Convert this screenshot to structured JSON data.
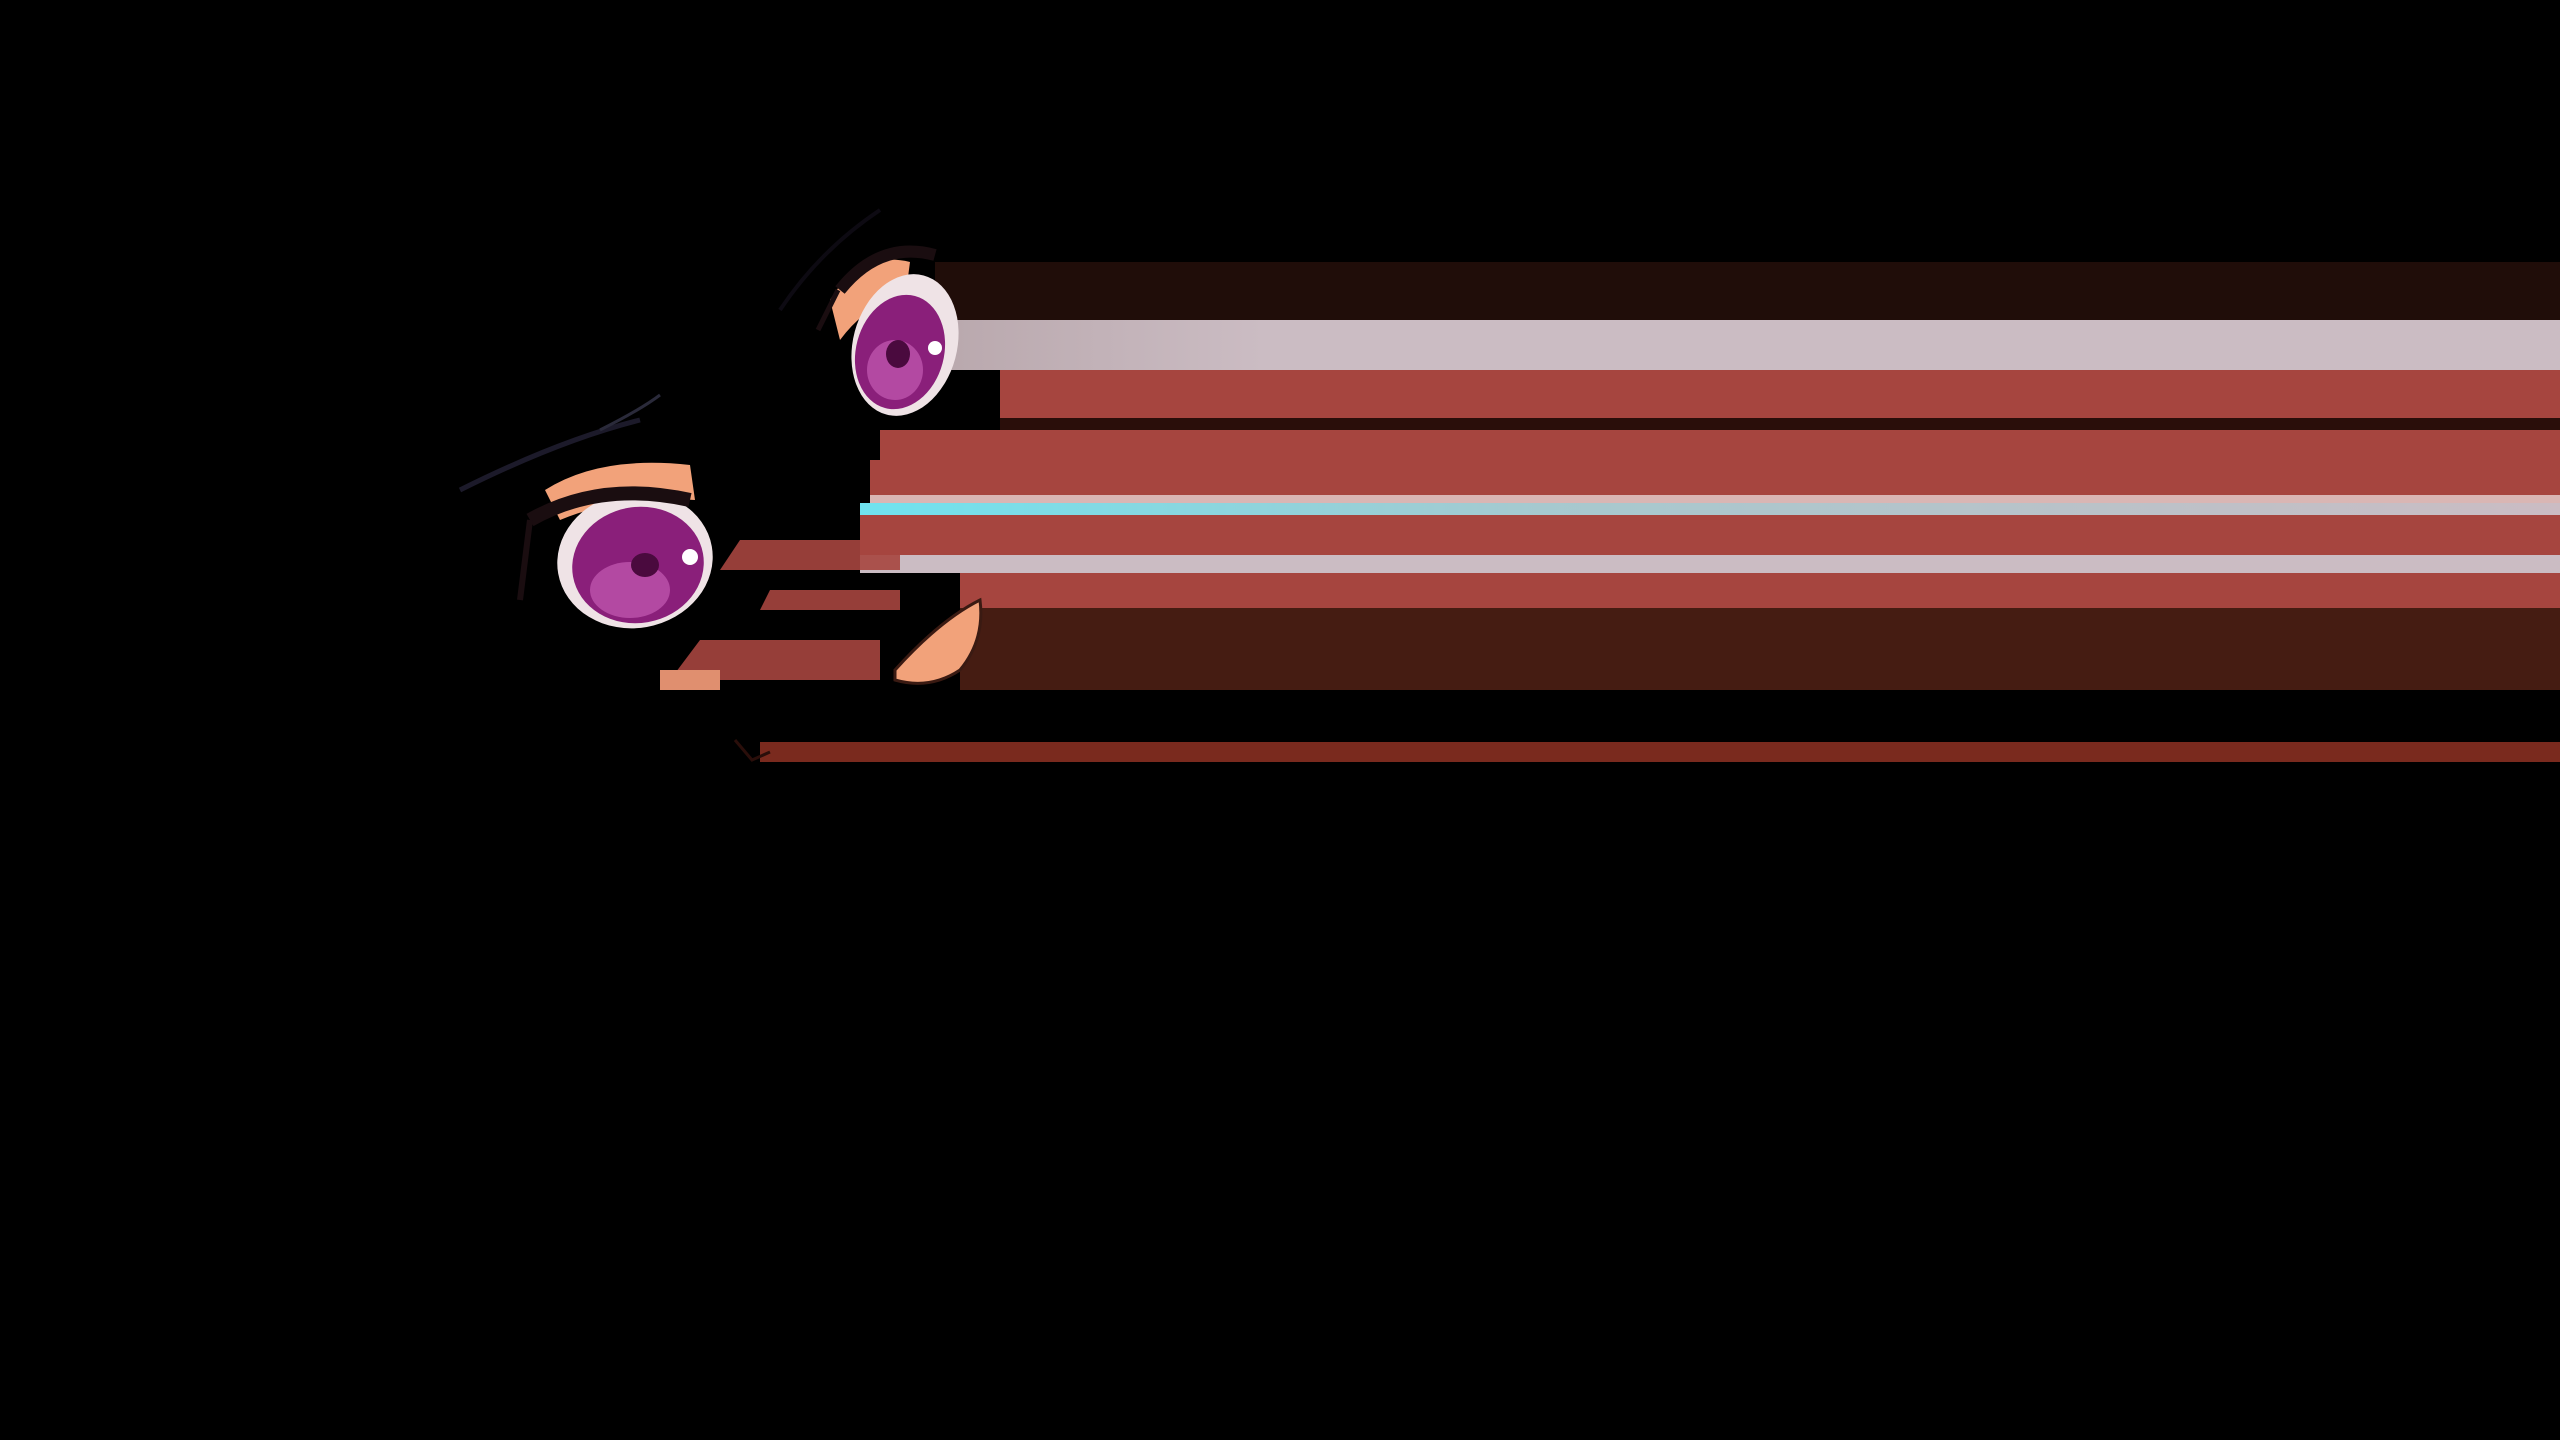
{
  "scene": {
    "subject": "anime-style-face-partial",
    "background_color": "#000000",
    "iris_color": "#8a1f7a",
    "iris_highlight_color": "#c45bb4",
    "sclera_color": "#efe3e6",
    "skin_color": "#f2a27a",
    "blush_color": "#a6453f",
    "dark_red_band_color": "#451c12",
    "pink_band_color": "#cbbcc3",
    "cyan_accent_color": "#6fe3ef",
    "eyelash_color": "#1a0d10"
  }
}
